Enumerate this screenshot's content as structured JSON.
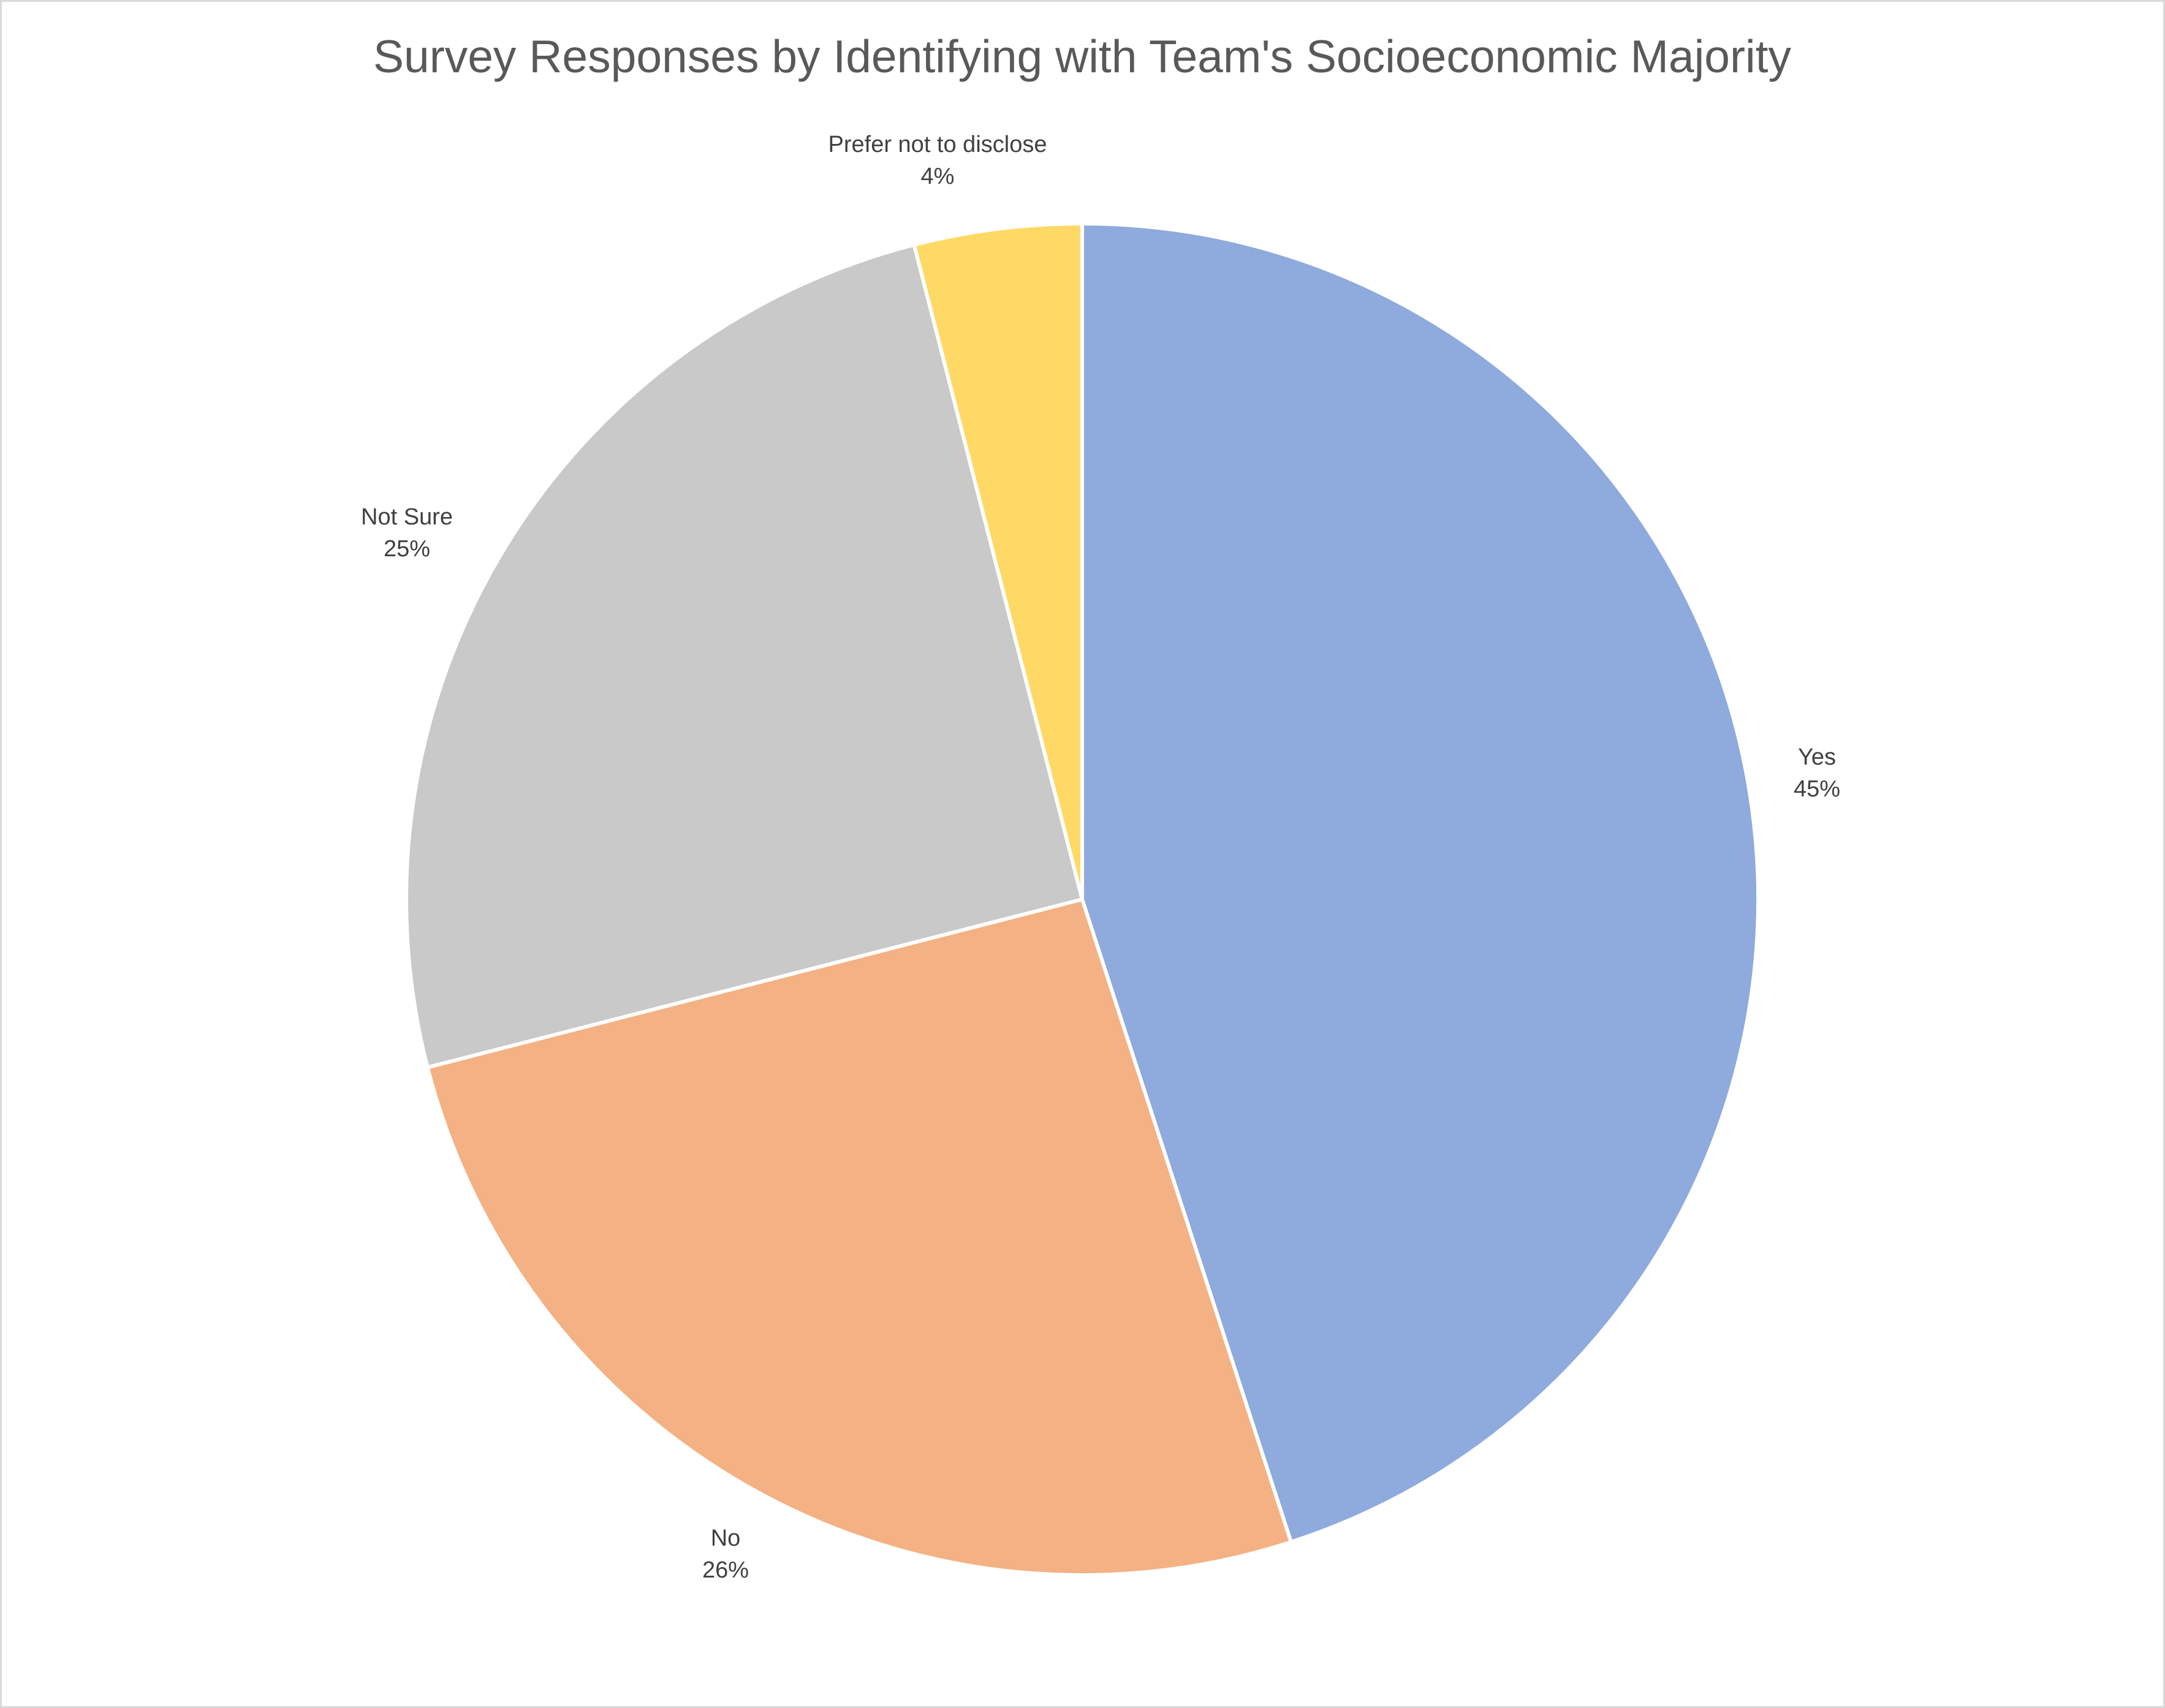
{
  "chart_data": {
    "type": "pie",
    "title": "Survey Responses by Identifying with Team's Socioeconomic Majority",
    "slices": [
      {
        "category": "Yes",
        "value": 45,
        "label": "45%",
        "color": "#8faadc"
      },
      {
        "category": "No",
        "value": 26,
        "label": "26%",
        "color": "#f4b183"
      },
      {
        "category": "Not Sure",
        "value": 25,
        "label": "25%",
        "color": "#c9c9c9"
      },
      {
        "category": "Prefer not to disclose",
        "value": 4,
        "label": "4%",
        "color": "#ffd966"
      }
    ],
    "start_angle": "12 o'clock",
    "direction": "clockwise",
    "slice_border_color": "#ffffff",
    "legend": "none"
  }
}
